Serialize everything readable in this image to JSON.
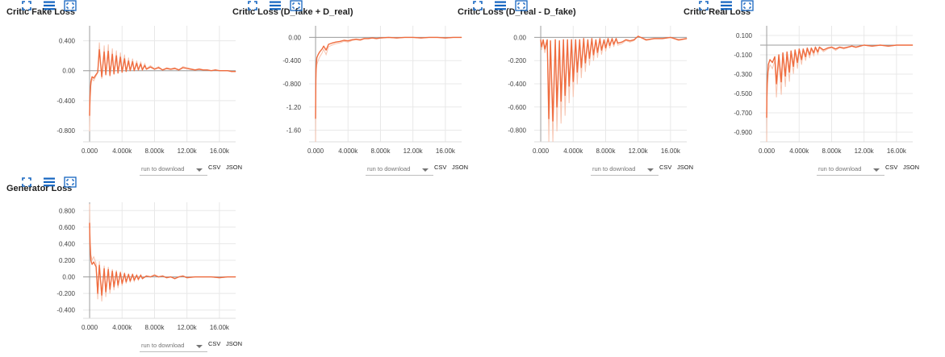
{
  "colors": {
    "line": "#ef6c3f",
    "line_faint": "#f7c3ae",
    "grid": "#e8e8e8",
    "axis": "#9e9e9e",
    "icon": "#1565c0"
  },
  "toolbar": {
    "icons": [
      "fit-to-screen-icon",
      "data-list-icon",
      "expand-icon"
    ],
    "download_label": "run to download",
    "csv_label": "CSV",
    "json_label": "JSON"
  },
  "chart_data": [
    {
      "type": "line",
      "title": "Critic Fake Loss",
      "x_ticks": [
        "0.000",
        "4.000k",
        "8.000k",
        "12.00k",
        "16.00k"
      ],
      "x_tick_values": [
        0,
        4000,
        8000,
        12000,
        16000
      ],
      "xlim": [
        -800,
        18000
      ],
      "y_ticks": [
        "0.400",
        "0.00",
        "-0.400",
        "-0.800"
      ],
      "y_tick_values": [
        0.4,
        0.0,
        -0.4,
        -0.8
      ],
      "ylim": [
        -0.95,
        0.6
      ],
      "series": [
        {
          "x": [
            0,
            50,
            150,
            300,
            500,
            800,
            1000,
            1200,
            1500,
            1800,
            2000,
            2300,
            2500,
            2800,
            3000,
            3300,
            3500,
            3800,
            4000,
            4300,
            4500,
            4800,
            5000,
            5300,
            5500,
            5800,
            6000,
            6300,
            6500,
            6800,
            7000,
            7500,
            8000,
            8500,
            9000,
            9500,
            10000,
            10500,
            11000,
            11500,
            12000,
            12500,
            13000,
            13500,
            14000,
            14500,
            15000,
            15500,
            16000,
            16500,
            17000,
            17500,
            18000
          ],
          "y": [
            -0.6,
            -0.35,
            -0.15,
            -0.08,
            -0.1,
            -0.05,
            -0.02,
            0.28,
            -0.08,
            0.25,
            -0.05,
            0.26,
            -0.06,
            0.22,
            -0.04,
            0.2,
            -0.03,
            0.18,
            -0.02,
            0.16,
            -0.01,
            0.13,
            0.0,
            0.12,
            0.0,
            0.1,
            0.01,
            0.09,
            0.01,
            0.07,
            0.02,
            0.05,
            0.02,
            0.04,
            0.01,
            0.03,
            0.02,
            0.03,
            0.01,
            0.04,
            0.03,
            0.02,
            0.01,
            0.02,
            0.01,
            0.01,
            0.0,
            0.01,
            0.0,
            0.0,
            0.0,
            -0.01,
            -0.01
          ]
        }
      ]
    },
    {
      "type": "line",
      "title": "Critic Loss (D_fake + D_real)",
      "x_ticks": [
        "0.000",
        "4.000k",
        "8.000k",
        "12.00k",
        "16.00k"
      ],
      "x_tick_values": [
        0,
        4000,
        8000,
        12000,
        16000
      ],
      "xlim": [
        -800,
        18000
      ],
      "y_ticks": [
        "0.00",
        "-0.400",
        "-0.800",
        "-1.20",
        "-1.60"
      ],
      "y_tick_values": [
        0.0,
        -0.4,
        -0.8,
        -1.2,
        -1.6
      ],
      "ylim": [
        -1.8,
        0.2
      ],
      "series": [
        {
          "x": [
            0,
            50,
            150,
            300,
            500,
            800,
            1000,
            1300,
            1600,
            2000,
            2500,
            3000,
            3500,
            4000,
            4500,
            5000,
            5500,
            6000,
            6500,
            7000,
            7500,
            8000,
            9000,
            10000,
            11000,
            12000,
            13000,
            14000,
            15000,
            16000,
            17000,
            18000
          ],
          "y": [
            -1.4,
            -0.55,
            -0.35,
            -0.3,
            -0.25,
            -0.2,
            -0.15,
            -0.22,
            -0.12,
            -0.1,
            -0.08,
            -0.07,
            -0.05,
            -0.06,
            -0.04,
            -0.03,
            -0.04,
            -0.02,
            -0.02,
            -0.01,
            -0.02,
            -0.01,
            0.0,
            -0.01,
            0.0,
            0.0,
            -0.01,
            0.0,
            0.0,
            -0.01,
            0.0,
            0.0
          ]
        }
      ]
    },
    {
      "type": "line",
      "title": "Critic Loss (D_real - D_fake)",
      "x_ticks": [
        "0.000",
        "4.000k",
        "8.000k",
        "12.00k",
        "16.00k"
      ],
      "x_tick_values": [
        0,
        4000,
        8000,
        12000,
        16000
      ],
      "xlim": [
        -800,
        18000
      ],
      "y_ticks": [
        "0.00",
        "-0.200",
        "-0.400",
        "-0.600",
        "-0.800"
      ],
      "y_tick_values": [
        0.0,
        -0.2,
        -0.4,
        -0.6,
        -0.8
      ],
      "ylim": [
        -0.9,
        0.1
      ],
      "series": [
        {
          "x": [
            0,
            100,
            300,
            500,
            800,
            1000,
            1200,
            1500,
            1800,
            2000,
            2300,
            2500,
            2800,
            3000,
            3300,
            3500,
            3800,
            4000,
            4300,
            4500,
            4800,
            5000,
            5300,
            5500,
            5800,
            6000,
            6300,
            6500,
            6800,
            7000,
            7300,
            7500,
            7800,
            8000,
            8300,
            8500,
            8800,
            9000,
            9300,
            9500,
            10000,
            10500,
            11000,
            11500,
            12000,
            13000,
            14000,
            15000,
            16000,
            17000,
            18000
          ],
          "y": [
            -0.02,
            -0.08,
            -0.02,
            -0.1,
            -0.02,
            -0.7,
            -0.03,
            -0.72,
            -0.02,
            -0.6,
            -0.03,
            -0.55,
            -0.02,
            -0.5,
            -0.02,
            -0.42,
            -0.02,
            -0.38,
            -0.02,
            -0.3,
            -0.02,
            -0.26,
            -0.01,
            -0.22,
            -0.02,
            -0.18,
            -0.01,
            -0.15,
            -0.02,
            -0.13,
            -0.01,
            -0.11,
            -0.02,
            -0.09,
            -0.01,
            -0.07,
            -0.01,
            -0.06,
            -0.01,
            -0.05,
            -0.04,
            -0.02,
            -0.03,
            -0.02,
            0.01,
            -0.02,
            -0.01,
            -0.01,
            0.0,
            -0.02,
            -0.01
          ]
        }
      ]
    },
    {
      "type": "line",
      "title": "Critic Real Loss",
      "x_ticks": [
        "0.000",
        "4.000k",
        "8.000k",
        "12.00k",
        "16.00k"
      ],
      "x_tick_values": [
        0,
        4000,
        8000,
        12000,
        16000
      ],
      "xlim": [
        -800,
        18000
      ],
      "y_ticks": [
        "0.100",
        "-0.100",
        "-0.300",
        "-0.500",
        "-0.700",
        "-0.900"
      ],
      "y_tick_values": [
        0.1,
        -0.1,
        -0.3,
        -0.5,
        -0.7,
        -0.9
      ],
      "ylim": [
        -1.0,
        0.2
      ],
      "series": [
        {
          "x": [
            0,
            50,
            200,
            400,
            700,
            1000,
            1200,
            1500,
            1800,
            2000,
            2300,
            2500,
            2800,
            3000,
            3300,
            3500,
            3800,
            4000,
            4300,
            4500,
            4800,
            5000,
            5300,
            5500,
            5800,
            6000,
            6300,
            6500,
            7000,
            7500,
            8000,
            8500,
            9000,
            9500,
            10000,
            10500,
            11000,
            11500,
            12000,
            13000,
            14000,
            15000,
            16000,
            17000,
            18000
          ],
          "y": [
            -0.75,
            -0.4,
            -0.2,
            -0.15,
            -0.18,
            -0.12,
            -0.4,
            -0.1,
            -0.38,
            -0.08,
            -0.32,
            -0.07,
            -0.28,
            -0.06,
            -0.22,
            -0.05,
            -0.18,
            -0.04,
            -0.15,
            -0.04,
            -0.12,
            -0.03,
            -0.1,
            -0.03,
            -0.08,
            -0.02,
            -0.07,
            -0.02,
            -0.05,
            -0.03,
            -0.02,
            -0.04,
            -0.02,
            -0.03,
            -0.02,
            -0.01,
            -0.02,
            -0.01,
            0.0,
            -0.01,
            0.0,
            -0.01,
            0.0,
            0.0,
            0.0
          ]
        }
      ]
    },
    {
      "type": "line",
      "title": "Generator Loss",
      "x_ticks": [
        "0.000",
        "4.000k",
        "8.000k",
        "12.00k",
        "16.00k"
      ],
      "x_tick_values": [
        0,
        4000,
        8000,
        12000,
        16000
      ],
      "xlim": [
        -800,
        18000
      ],
      "y_ticks": [
        "0.800",
        "0.600",
        "0.400",
        "0.200",
        "0.00",
        "-0.200",
        "-0.400"
      ],
      "y_tick_values": [
        0.8,
        0.6,
        0.4,
        0.2,
        0.0,
        -0.2,
        -0.4
      ],
      "ylim": [
        -0.5,
        0.9
      ],
      "series": [
        {
          "x": [
            0,
            50,
            150,
            300,
            500,
            800,
            1000,
            1200,
            1500,
            1800,
            2000,
            2300,
            2500,
            2800,
            3000,
            3300,
            3500,
            3800,
            4000,
            4300,
            4500,
            4800,
            5000,
            5300,
            5500,
            5800,
            6000,
            6300,
            6500,
            7000,
            7500,
            8000,
            8500,
            9000,
            9500,
            10000,
            10500,
            11000,
            11500,
            12000,
            13000,
            14000,
            15000,
            16000,
            17000,
            18000
          ],
          "y": [
            0.65,
            0.4,
            0.2,
            0.15,
            0.18,
            0.12,
            -0.2,
            0.14,
            -0.22,
            0.1,
            -0.18,
            0.09,
            -0.15,
            0.07,
            -0.12,
            0.06,
            -0.1,
            0.05,
            -0.08,
            0.04,
            -0.06,
            0.03,
            -0.05,
            0.03,
            -0.04,
            0.02,
            -0.03,
            0.02,
            -0.02,
            0.01,
            0.0,
            0.02,
            0.0,
            0.01,
            -0.01,
            0.0,
            -0.02,
            0.0,
            0.01,
            -0.01,
            0.0,
            0.0,
            0.0,
            -0.01,
            0.0,
            0.0
          ]
        }
      ]
    }
  ]
}
